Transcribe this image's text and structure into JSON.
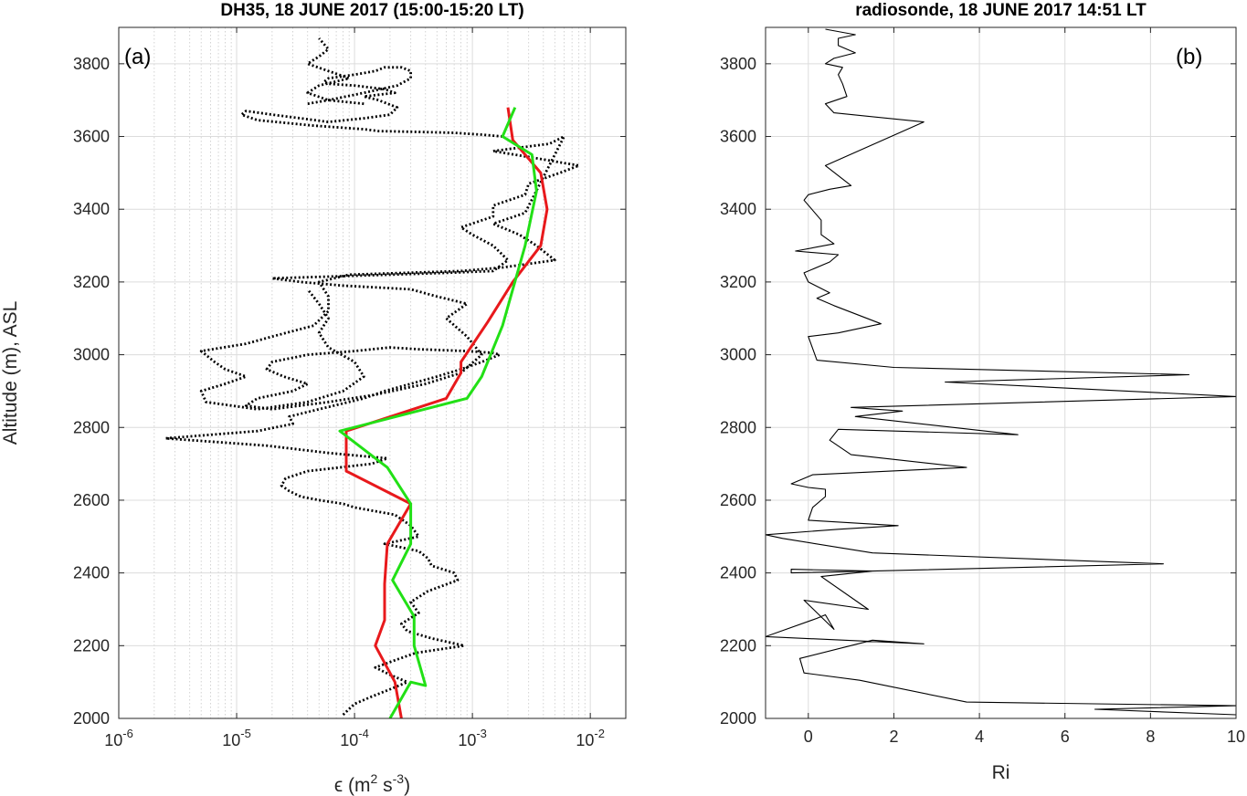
{
  "chart_data": [
    {
      "panel_label": "(a)",
      "type": "line",
      "title": "DH35, 18 JUNE 2017 (15:00-15:20 LT)",
      "xlabel_sym": "ϵ",
      "xlabel_open": " (m",
      "xlabel_sup1": "2",
      "xlabel_mid": " s",
      "xlabel_sup2": "-3",
      "xlabel_close": ")",
      "ylabel": "Altitude (m), ASL",
      "xscale": "log",
      "xlim": [
        1e-06,
        0.02
      ],
      "ylim": [
        2000,
        3900
      ],
      "grid": true,
      "xticks": [
        {
          "value": 1e-06,
          "base": "10",
          "exp": "-6"
        },
        {
          "value": 1e-05,
          "base": "10",
          "exp": "-5"
        },
        {
          "value": 0.0001,
          "base": "10",
          "exp": "-4"
        },
        {
          "value": 0.001,
          "base": "10",
          "exp": "-3"
        },
        {
          "value": 0.01,
          "base": "10",
          "exp": "-2"
        }
      ],
      "yticks": [
        {
          "value": 2000,
          "label": "2000"
        },
        {
          "value": 2200,
          "label": "2200"
        },
        {
          "value": 2400,
          "label": "2400"
        },
        {
          "value": 2600,
          "label": "2600"
        },
        {
          "value": 2800,
          "label": "2800"
        },
        {
          "value": 3000,
          "label": "3000"
        },
        {
          "value": 3200,
          "label": "3200"
        },
        {
          "value": 3400,
          "label": "3400"
        },
        {
          "value": 3600,
          "label": "3600"
        },
        {
          "value": 3800,
          "label": "3800"
        }
      ],
      "series": [
        {
          "style": "dotted",
          "color": "#000000",
          "x": [
            8e-05,
            0.0001,
            0.00014,
            0.0002,
            0.00028,
            0.0002,
            0.00015,
            0.00022,
            0.00033,
            0.00085,
            0.00045,
            0.00028,
            0.00025,
            0.00035,
            0.0003,
            0.00042,
            0.00075,
            0.0007,
            0.00045,
            0.00042,
            0.00035,
            0.00018,
            0.00035,
            0.0003,
            0.00022,
            0.0001,
            8e-05,
            5e-05,
            3.5e-05,
            2.8e-05,
            2.4e-05,
            2.6e-05,
            4e-05,
            0.00014,
            0.00019,
            6e-05,
            1.8e-05,
            2.5e-06,
            1.5e-05,
            3e-05,
            2.8e-05,
            5e-05,
            0.00012,
            0.00018,
            0.0003,
            0.0005,
            0.0008,
            0.0012,
            0.0017,
            0.0015,
            0.0009,
            0.00035,
            0.0002,
            0.0001,
            4e-05,
            2e-05,
            1.8e-05,
            2.5e-05,
            4e-05,
            3e-05,
            1.5e-05,
            1.2e-05,
            2e-05,
            6e-05,
            0.00015,
            0.0004,
            0.0008,
            0.0012,
            0.0009,
            0.0006,
            0.0009,
            0.0005,
            0.0003,
            8e-05,
            3.5e-05,
            2e-05,
            0.0002,
            0.0006,
            0.0015,
            0.002,
            0.0015,
            0.001,
            0.0008,
            0.0015,
            0.0015,
            0.0028,
            0.003,
            0.0055,
            0.008,
            0.0035,
            0.0015,
            0.0045,
            0.006,
            0.0028,
            0.0015,
            0.0025,
            0.0035,
            0.005,
            0.0018,
            0.0008,
            9e-05,
            5e-05,
            6e-05,
            6e-05,
            4.5e-05,
            2e-05,
            1.2e-05,
            5e-06,
            6.5e-06,
            8e-06,
            1.2e-05,
            8e-06,
            5e-06,
            5.5e-06,
            1.5e-05,
            4e-05,
            8e-05,
            0.00012,
            0.0001,
            6e-05,
            5e-05,
            6e-05,
            5e-05,
            4e-05
          ],
          "y": [
            2010,
            2040,
            2060,
            2080,
            2100,
            2120,
            2140,
            2160,
            2180,
            2200,
            2220,
            2240,
            2260,
            2290,
            2320,
            2350,
            2380,
            2400,
            2420,
            2440,
            2460,
            2480,
            2500,
            2530,
            2560,
            2580,
            2590,
            2600,
            2610,
            2625,
            2640,
            2660,
            2680,
            2700,
            2715,
            2730,
            2750,
            2770,
            2790,
            2810,
            2830,
            2850,
            2880,
            2900,
            2920,
            2940,
            2960,
            2980,
            3000,
            3005,
            3010,
            3015,
            3020,
            3010,
            3000,
            2980,
            2960,
            2940,
            2920,
            2900,
            2880,
            2860,
            2850,
            2870,
            2890,
            2920,
            2950,
            3000,
            3050,
            3100,
            3140,
            3160,
            3180,
            3190,
            3200,
            3210,
            3220,
            3225,
            3230,
            3260,
            3300,
            3330,
            3350,
            3380,
            3410,
            3440,
            3470,
            3500,
            3520,
            3540,
            3560,
            3580,
            3600,
            3390,
            3360,
            3330,
            3300,
            3260,
            3240,
            3230,
            3220,
            3200,
            3160,
            3120,
            3080,
            3050,
            3030,
            3010,
            2980,
            2960,
            2940,
            2920,
            2900,
            2870,
            2850,
            2870,
            2900,
            2940,
            2980,
            3020,
            3060,
            3100,
            3140,
            3180
          ]
        },
        {
          "style": "dotted",
          "color": "#000000",
          "x": [
            0.0018,
            0.0012,
            0.0007,
            0.0004,
            0.00016,
            0.00012,
            4.5e-05,
            1.5e-05,
            1.1e-05,
            1.2e-05,
            2e-05,
            3.5e-05,
            6e-05,
            0.00012,
            0.0002,
            0.00023,
            0.00016,
            0.00012,
            0.00022,
            0.00018,
            0.0001,
            6e-05,
            5.5e-05,
            6e-05,
            0.0001,
            0.00015,
            0.00018,
            0.00025,
            0.0003,
            0.0003,
            0.00023,
            0.00012,
            6e-05,
            4e-05
          ],
          "y": [
            3600,
            3605,
            3610,
            3612,
            3615,
            3620,
            3630,
            3645,
            3660,
            3670,
            3660,
            3650,
            3640,
            3650,
            3660,
            3680,
            3700,
            3710,
            3720,
            3730,
            3740,
            3745,
            3750,
            3760,
            3770,
            3780,
            3790,
            3790,
            3780,
            3760,
            3740,
            3720,
            3700,
            3690
          ]
        },
        {
          "style": "dotted",
          "color": "#000000",
          "x": [
            0.00012,
            6e-05,
            4e-05,
            5e-05,
            9e-05,
            6e-05,
            4e-05,
            5e-05,
            6e-05,
            5e-05
          ],
          "y": [
            3690,
            3700,
            3720,
            3740,
            3760,
            3780,
            3800,
            3820,
            3840,
            3870
          ]
        }
      ],
      "lines": [
        {
          "name": "red",
          "color": "#e8191c",
          "x": [
            0.00025,
            0.00022,
            0.00015,
            0.00018,
            0.00018,
            0.00019,
            0.0003,
            0.0003,
            8.5e-05,
            8.5e-05,
            0.0006,
            0.0008,
            0.0008,
            0.00135,
            0.0022,
            0.0038,
            0.0043,
            0.0038,
            0.0022,
            0.002
          ],
          "y": [
            2000,
            2100,
            2200,
            2270,
            2370,
            2480,
            2590,
            2590,
            2680,
            2790,
            2880,
            2950,
            2980,
            3090,
            3200,
            3300,
            3400,
            3500,
            3590,
            3680
          ]
        },
        {
          "name": "green",
          "color": "#22e016",
          "x": [
            0.0002,
            0.0003,
            0.0004,
            0.00032,
            0.00032,
            0.00021,
            0.0003,
            0.0003,
            0.00019,
            7.5e-05,
            0.0009,
            0.0012,
            0.0018,
            0.0028,
            0.0035,
            0.0032,
            0.0018,
            0.0023
          ],
          "y": [
            2000,
            2100,
            2090,
            2200,
            2280,
            2380,
            2480,
            2590,
            2690,
            2790,
            2880,
            2940,
            3080,
            3300,
            3450,
            3550,
            3600,
            3680
          ]
        }
      ]
    },
    {
      "panel_label": "(b)",
      "type": "line",
      "title": "radiosonde, 18 JUNE 2017 14:51 LT",
      "xlabel": "Ri",
      "ylabel": "",
      "xscale": "linear",
      "xlim": [
        -1,
        10
      ],
      "ylim": [
        2000,
        3900
      ],
      "grid": true,
      "xticks": [
        {
          "value": 0,
          "label": "0"
        },
        {
          "value": 2,
          "label": "2"
        },
        {
          "value": 4,
          "label": "4"
        },
        {
          "value": 6,
          "label": "6"
        },
        {
          "value": 8,
          "label": "8"
        },
        {
          "value": 10,
          "label": "10"
        }
      ],
      "yticks": [
        {
          "value": 2000,
          "label": "2000"
        },
        {
          "value": 2200,
          "label": "2200"
        },
        {
          "value": 2400,
          "label": "2400"
        },
        {
          "value": 2600,
          "label": "2600"
        },
        {
          "value": 2800,
          "label": "2800"
        },
        {
          "value": 3000,
          "label": "3000"
        },
        {
          "value": 3200,
          "label": "3200"
        },
        {
          "value": 3400,
          "label": "3400"
        },
        {
          "value": 3600,
          "label": "3600"
        },
        {
          "value": 3800,
          "label": "3800"
        }
      ],
      "series": [
        {
          "color": "#000000",
          "x": [
            10,
            6.7,
            10,
            3.7,
            1.2,
            -0.1,
            -0.2,
            1.5,
            2.7,
            -1,
            0.2,
            0.4,
            0.6,
            -0.1,
            1.4,
            0.3,
            1.5,
            -0.4,
            -0.4,
            1.5,
            8.3,
            1.5,
            -0.6,
            -1,
            0.7,
            2.1,
            0,
            0.1,
            0.4,
            0.4,
            0,
            -0.4,
            0.1,
            3.7,
            1.0,
            0.5,
            0.7,
            4.9,
            1.1,
            2.2,
            1.0,
            10,
            3.2,
            8.9,
            2.0,
            0.2,
            0,
            0.7,
            1.7,
            0.6,
            0.2,
            0.5,
            0.0,
            -0.1,
            0.5,
            0.7,
            -0.3,
            0.6,
            0.3,
            0.3,
            -0.1,
            0,
            0.5,
            1.0,
            0.4,
            2.7,
            0.6,
            0.4,
            0.9,
            0.8,
            0.7,
            0.8,
            0.4,
            0.6,
            1.1,
            0.7,
            0.7,
            1.1,
            0.4
          ],
          "y": [
            2010,
            2025,
            2035,
            2045,
            2105,
            2125,
            2165,
            2215,
            2205,
            2225,
            2275,
            2285,
            2245,
            2325,
            2300,
            2390,
            2405,
            2410,
            2400,
            2405,
            2425,
            2455,
            2495,
            2505,
            2520,
            2530,
            2545,
            2580,
            2610,
            2630,
            2635,
            2645,
            2670,
            2690,
            2725,
            2765,
            2795,
            2780,
            2830,
            2845,
            2855,
            2885,
            2925,
            2945,
            2965,
            2985,
            3050,
            3060,
            3085,
            3135,
            3155,
            3170,
            3200,
            3225,
            3255,
            3275,
            3285,
            3305,
            3330,
            3370,
            3425,
            3440,
            3455,
            3465,
            3520,
            3640,
            3665,
            3690,
            3710,
            3745,
            3770,
            3790,
            3800,
            3815,
            3830,
            3850,
            3870,
            3880,
            3895
          ]
        }
      ]
    }
  ]
}
